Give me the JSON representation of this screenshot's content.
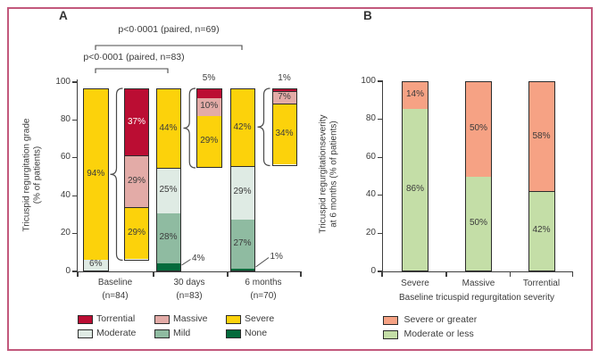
{
  "figure": {
    "border_color": "#c2587c",
    "background": "#ffffff",
    "axis_color": "#3e3e3e",
    "text_color": "#3b3b3b"
  },
  "panel_a": {
    "label": "A",
    "ylabel_line1": "Tricuspid regurgitation grade",
    "ylabel_line2": "(% of patients)",
    "yticks": [
      0,
      20,
      40,
      60,
      80,
      100
    ],
    "pvalue_top": "p<0·0001 (paired, n=69)",
    "pvalue_bottom": "p<0·0001 (paired, n=83)",
    "groups": [
      {
        "line1": "Baseline",
        "line2": "(n=84)"
      },
      {
        "line1": "30 days",
        "line2": "(n=83)"
      },
      {
        "line1": "6 months",
        "line2": "(n=70)"
      }
    ],
    "legend": [
      {
        "name": "Torrential",
        "color": "#bb0d33"
      },
      {
        "name": "Massive",
        "color": "#e3aba7"
      },
      {
        "name": "Severe",
        "color": "#fcd20b"
      },
      {
        "name": "Moderate",
        "color": "#dfebe4"
      },
      {
        "name": "Mild",
        "color": "#8fbba1"
      },
      {
        "name": "None",
        "color": "#046b3c"
      }
    ],
    "bars": [
      {
        "id": "baseline-main",
        "segments": [
          {
            "grade": "Moderate",
            "value": 6,
            "label": "6%"
          },
          {
            "grade": "Severe",
            "value": 94,
            "label": "94%"
          }
        ]
      },
      {
        "id": "baseline-breakdown",
        "segments": [
          {
            "grade": "Severe",
            "value": 29,
            "label": "29%"
          },
          {
            "grade": "Massive",
            "value": 29,
            "label": "29%"
          },
          {
            "grade": "Torrential",
            "value": 37,
            "label": "37%",
            "label_color": "#ffffff"
          }
        ]
      },
      {
        "id": "30days-main",
        "segments": [
          {
            "grade": "None",
            "value": 4
          },
          {
            "grade": "Mild",
            "value": 28,
            "label": "28%"
          },
          {
            "grade": "Moderate",
            "value": 25,
            "label": "25%"
          },
          {
            "grade": "Severe",
            "value": 44,
            "label": "44%"
          }
        ]
      },
      {
        "id": "30days-breakdown",
        "segments": [
          {
            "grade": "Severe",
            "value": 29,
            "label": "29%"
          },
          {
            "grade": "Massive",
            "value": 10,
            "label": "10%"
          },
          {
            "grade": "Torrential",
            "value": 5
          }
        ]
      },
      {
        "id": "6months-main",
        "segments": [
          {
            "grade": "None",
            "value": 1
          },
          {
            "grade": "Mild",
            "value": 27,
            "label": "27%"
          },
          {
            "grade": "Moderate",
            "value": 29,
            "label": "29%"
          },
          {
            "grade": "Severe",
            "value": 42,
            "label": "42%"
          }
        ]
      },
      {
        "id": "6months-breakdown",
        "segments": [
          {
            "grade": "Severe",
            "value": 34,
            "label": "34%"
          },
          {
            "grade": "Massive",
            "value": 7,
            "label": "7%"
          },
          {
            "grade": "Torrential",
            "value": 1
          }
        ]
      }
    ],
    "outside_labels": [
      {
        "text": "5%",
        "refers_to": "30days-breakdown Torrential"
      },
      {
        "text": "1%",
        "refers_to": "6months-breakdown Torrential"
      },
      {
        "text": "4%",
        "refers_to": "30days-main None"
      },
      {
        "text": "1%",
        "refers_to": "6months-main None"
      }
    ]
  },
  "panel_b": {
    "label": "B",
    "ylabel_line1": "Tricuspid regurgitationseverity",
    "ylabel_line2": "at 6 months (% of patients)",
    "xlabel": "Baseline tricuspid regurgitation severity",
    "yticks": [
      0,
      20,
      40,
      60,
      80,
      100
    ],
    "categories": [
      "Severe",
      "Massive",
      "Torrential"
    ],
    "legend": [
      {
        "name": "Severe or greater",
        "color": "#f6a284"
      },
      {
        "name": "Moderate or less",
        "color": "#c4dea7"
      }
    ],
    "bars": [
      {
        "id": "severe",
        "segments": [
          {
            "grade": "Moderate or less",
            "value": 86,
            "label": "86%"
          },
          {
            "grade": "Severe or greater",
            "value": 14,
            "label": "14%"
          }
        ]
      },
      {
        "id": "massive",
        "segments": [
          {
            "grade": "Moderate or less",
            "value": 50,
            "label": "50%"
          },
          {
            "grade": "Severe or greater",
            "value": 50,
            "label": "50%"
          }
        ]
      },
      {
        "id": "torrential",
        "segments": [
          {
            "grade": "Moderate or less",
            "value": 42,
            "label": "42%"
          },
          {
            "grade": "Severe or greater",
            "value": 58,
            "label": "58%"
          }
        ]
      }
    ]
  },
  "chart_data": [
    {
      "type": "bar",
      "subtype": "stacked-percent",
      "panel": "A",
      "ylabel": "Tricuspid regurgitation grade (% of patients)",
      "ylim": [
        0,
        100
      ],
      "grid": false,
      "legend_position": "bottom",
      "categories": [
        "Baseline (n=84)",
        "30 days (n=83)",
        "6 months (n=70)"
      ],
      "series": [
        {
          "name": "None",
          "values": [
            0,
            4,
            1
          ]
        },
        {
          "name": "Mild",
          "values": [
            0,
            28,
            27
          ]
        },
        {
          "name": "Moderate",
          "values": [
            6,
            25,
            29
          ]
        },
        {
          "name": "Severe or greater",
          "values": [
            94,
            44,
            42
          ]
        }
      ],
      "breakdown_of_severe_or_greater": [
        {
          "category": "Baseline (n=84)",
          "Severe": 29,
          "Massive": 29,
          "Torrential": 37
        },
        {
          "category": "30 days (n=83)",
          "Severe": 29,
          "Massive": 10,
          "Torrential": 5
        },
        {
          "category": "6 months (n=70)",
          "Severe": 34,
          "Massive": 7,
          "Torrential": 1
        }
      ],
      "legend": [
        "Torrential",
        "Massive",
        "Severe",
        "Moderate",
        "Mild",
        "None"
      ],
      "annotations": [
        "p<0·0001 (paired, n=83)",
        "p<0·0001 (paired, n=69)"
      ]
    },
    {
      "type": "bar",
      "subtype": "stacked-percent",
      "panel": "B",
      "xlabel": "Baseline tricuspid regurgitation severity",
      "ylabel": "Tricuspid regurgitationseverity at 6 months (% of patients)",
      "ylim": [
        0,
        100
      ],
      "grid": false,
      "legend_position": "bottom",
      "categories": [
        "Severe",
        "Massive",
        "Torrential"
      ],
      "series": [
        {
          "name": "Moderate or less",
          "values": [
            86,
            50,
            42
          ]
        },
        {
          "name": "Severe or greater",
          "values": [
            14,
            50,
            58
          ]
        }
      ],
      "legend": [
        "Severe or greater",
        "Moderate or less"
      ]
    }
  ]
}
